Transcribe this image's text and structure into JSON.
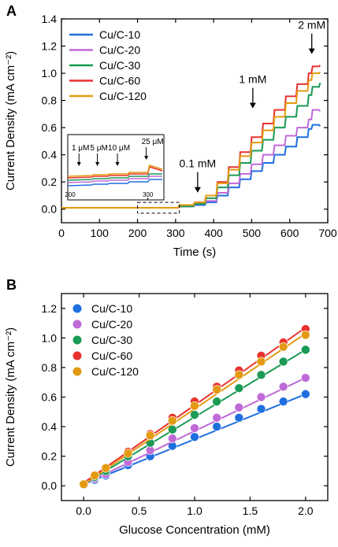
{
  "chart_data": [
    {
      "panel_label": "A",
      "type": "line",
      "title": "",
      "xlabel": "Time (s)",
      "ylabel": "Current Density (mA cm⁻²)",
      "xlim": [
        0,
        700
      ],
      "ylim": [
        -0.1,
        1.4
      ],
      "xticks": [
        0,
        100,
        200,
        300,
        400,
        500,
        600,
        700
      ],
      "yticks": [
        0.0,
        0.2,
        0.4,
        0.6,
        0.8,
        1.0,
        1.2,
        1.4
      ],
      "grid": false,
      "legend_position": "top-left",
      "series": [
        {
          "name": "Cu/C-10",
          "color": "#1f6fe0",
          "x": [
            0,
            310,
            320,
            350,
            380,
            410,
            440,
            470,
            500,
            530,
            560,
            590,
            620,
            650,
            660,
            680
          ],
          "y": [
            0.01,
            0.02,
            0.02,
            0.03,
            0.05,
            0.1,
            0.16,
            0.22,
            0.28,
            0.34,
            0.4,
            0.46,
            0.53,
            0.59,
            0.62,
            0.61
          ]
        },
        {
          "name": "Cu/C-20",
          "color": "#c06ad8",
          "x": [
            0,
            310,
            320,
            350,
            380,
            410,
            440,
            470,
            500,
            530,
            560,
            590,
            620,
            650,
            660,
            680
          ],
          "y": [
            0.01,
            0.02,
            0.02,
            0.04,
            0.06,
            0.12,
            0.19,
            0.26,
            0.33,
            0.4,
            0.47,
            0.54,
            0.6,
            0.66,
            0.73,
            0.72
          ]
        },
        {
          "name": "Cu/C-30",
          "color": "#1a9a55",
          "x": [
            0,
            310,
            320,
            350,
            380,
            410,
            440,
            470,
            500,
            530,
            560,
            590,
            620,
            650,
            660,
            680
          ],
          "y": [
            0.01,
            0.02,
            0.02,
            0.04,
            0.08,
            0.16,
            0.25,
            0.34,
            0.43,
            0.51,
            0.6,
            0.68,
            0.76,
            0.84,
            0.9,
            0.93
          ]
        },
        {
          "name": "Cu/C-60",
          "color": "#e8322d",
          "x": [
            0,
            310,
            320,
            350,
            380,
            410,
            440,
            470,
            500,
            530,
            560,
            590,
            620,
            650,
            660,
            680
          ],
          "y": [
            0.01,
            0.03,
            0.03,
            0.05,
            0.1,
            0.2,
            0.31,
            0.42,
            0.53,
            0.63,
            0.73,
            0.83,
            0.92,
            1.0,
            1.05,
            1.06
          ]
        },
        {
          "name": "Cu/C-120",
          "color": "#e39a12",
          "x": [
            0,
            310,
            320,
            350,
            380,
            410,
            440,
            470,
            500,
            530,
            560,
            590,
            620,
            650,
            660,
            680
          ],
          "y": [
            0.01,
            0.03,
            0.03,
            0.05,
            0.1,
            0.19,
            0.29,
            0.39,
            0.49,
            0.58,
            0.68,
            0.78,
            0.87,
            0.95,
            1.0,
            1.01
          ]
        }
      ],
      "annotations": [
        {
          "text": "2 mM",
          "x": 658,
          "y": 1.13
        },
        {
          "text": "1 mM",
          "x": 503,
          "y": 0.73
        },
        {
          "text": "0.1 mM",
          "x": 358,
          "y": 0.11
        }
      ],
      "inset": {
        "xlim": [
          200,
          320
        ],
        "xticks": [
          200,
          300
        ],
        "arrow_labels": [
          "1 μM",
          "5 μM",
          "10 μM",
          "25 μM"
        ]
      }
    },
    {
      "panel_label": "B",
      "type": "scatter",
      "title": "",
      "xlabel": "Glucose Concentration (mM)",
      "ylabel": "Current Density (mA cm⁻²)",
      "xlim": [
        -0.2,
        2.2
      ],
      "ylim": [
        -0.1,
        1.3
      ],
      "xticks": [
        0.0,
        0.5,
        1.0,
        1.5,
        2.0
      ],
      "yticks": [
        0.0,
        0.2,
        0.4,
        0.6,
        0.8,
        1.0,
        1.2
      ],
      "grid": false,
      "legend_position": "top-left",
      "x": [
        0.0,
        0.1,
        0.2,
        0.4,
        0.6,
        0.8,
        1.0,
        1.2,
        1.4,
        1.6,
        1.8,
        2.0
      ],
      "series": [
        {
          "name": "Cu/C-10",
          "color": "#1f6fe0",
          "values": [
            0.01,
            0.04,
            0.07,
            0.14,
            0.2,
            0.27,
            0.33,
            0.4,
            0.46,
            0.52,
            0.57,
            0.62
          ],
          "fit_slope": 0.305,
          "fit_intercept": 0.01
        },
        {
          "name": "Cu/C-20",
          "color": "#c06ad8",
          "values": [
            0.01,
            0.05,
            0.08,
            0.16,
            0.24,
            0.32,
            0.39,
            0.46,
            0.53,
            0.6,
            0.67,
            0.73
          ],
          "fit_slope": 0.36,
          "fit_intercept": 0.01
        },
        {
          "name": "Cu/C-30",
          "color": "#1a9a55",
          "values": [
            0.01,
            0.06,
            0.1,
            0.2,
            0.29,
            0.38,
            0.48,
            0.57,
            0.66,
            0.75,
            0.84,
            0.92
          ],
          "fit_slope": 0.455,
          "fit_intercept": 0.01
        },
        {
          "name": "Cu/C-60",
          "color": "#e8322d",
          "values": [
            0.01,
            0.07,
            0.12,
            0.23,
            0.35,
            0.46,
            0.57,
            0.67,
            0.78,
            0.88,
            0.97,
            1.06
          ],
          "fit_slope": 0.525,
          "fit_intercept": 0.02
        },
        {
          "name": "Cu/C-120",
          "color": "#e39a12",
          "values": [
            0.01,
            0.07,
            0.12,
            0.22,
            0.34,
            0.44,
            0.54,
            0.65,
            0.75,
            0.84,
            0.94,
            1.02
          ],
          "fit_slope": 0.51,
          "fit_intercept": 0.01
        }
      ]
    }
  ]
}
